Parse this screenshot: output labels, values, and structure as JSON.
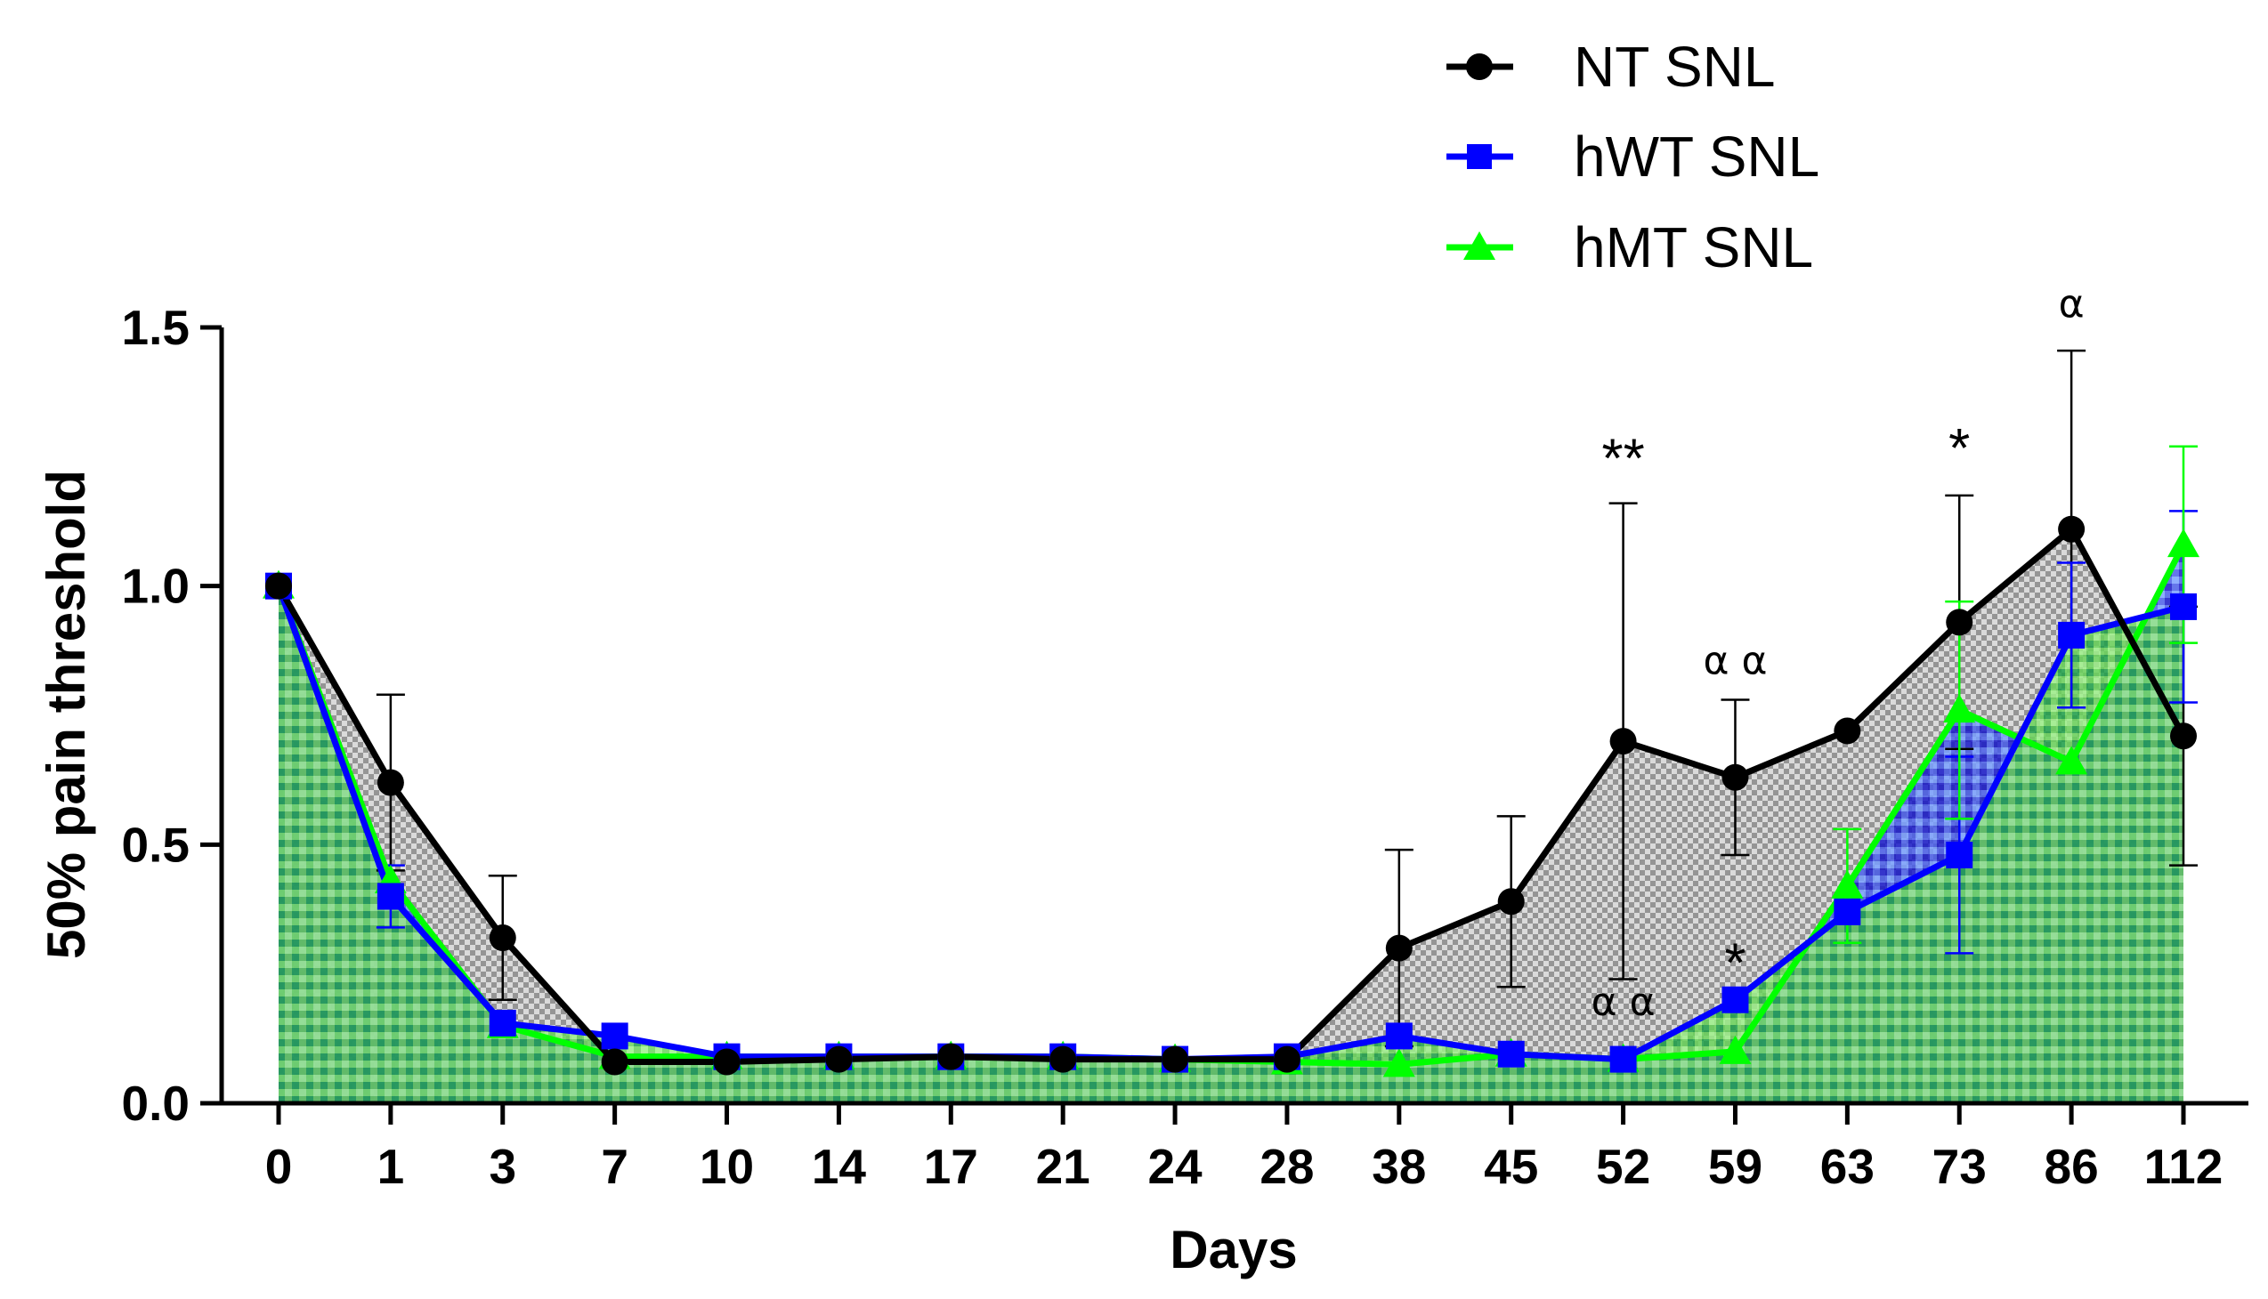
{
  "chart_data": {
    "type": "line",
    "title": "",
    "xlabel": "Days",
    "ylabel": "50% pain threshold",
    "categories": [
      "0",
      "1",
      "3",
      "7",
      "10",
      "14",
      "17",
      "21",
      "24",
      "28",
      "38",
      "45",
      "52",
      "59",
      "63",
      "73",
      "86",
      "112"
    ],
    "ylim": [
      0,
      1.5
    ],
    "yticks": [
      "0.0",
      "0.5",
      "1.0",
      "1.5"
    ],
    "ytick_values": [
      0,
      0.5,
      1.0,
      1.5
    ],
    "legend_position": "top-right",
    "series": [
      {
        "name": "NT SNL",
        "color": "#000000",
        "marker": "circle",
        "values": [
          1.0,
          0.62,
          0.32,
          0.08,
          0.08,
          0.085,
          0.09,
          0.085,
          0.085,
          0.085,
          0.3,
          0.39,
          0.7,
          0.63,
          0.72,
          0.93,
          1.11,
          0.71
        ],
        "error": [
          0,
          0.17,
          0.12,
          0,
          0,
          0,
          0,
          0,
          0,
          0,
          0.19,
          0.165,
          0.46,
          0.15,
          0,
          0.245,
          0.345,
          0.25
        ]
      },
      {
        "name": "hWT SNL",
        "color": "#0000ff",
        "marker": "square",
        "values": [
          1.0,
          0.4,
          0.155,
          0.13,
          0.09,
          0.09,
          0.09,
          0.09,
          0.085,
          0.09,
          0.13,
          0.095,
          0.085,
          0.2,
          0.37,
          0.48,
          0.905,
          0.96
        ],
        "error": [
          0,
          0.06,
          0,
          0,
          0,
          0,
          0,
          0,
          0,
          0,
          0,
          0,
          0,
          0,
          0,
          0.19,
          0.14,
          0.185
        ]
      },
      {
        "name": "hMT SNL",
        "color": "#00ff00",
        "marker": "triangle",
        "values": [
          1.0,
          0.43,
          0.15,
          0.09,
          0.09,
          0.09,
          0.09,
          0.09,
          0.085,
          0.08,
          0.075,
          0.095,
          0.085,
          0.1,
          0.42,
          0.76,
          0.66,
          1.08
        ],
        "error": [
          0,
          0,
          0,
          0,
          0,
          0,
          0,
          0,
          0,
          0,
          0,
          0,
          0,
          0,
          0.11,
          0.21,
          0,
          0.19
        ]
      }
    ],
    "annotations": [
      {
        "text": "**",
        "category": "52",
        "value": 1.21,
        "kind": "star"
      },
      {
        "text": "*",
        "category": "73",
        "value": 1.23,
        "kind": "star"
      },
      {
        "text": "*",
        "category": "59",
        "value": 0.235,
        "kind": "star"
      },
      {
        "text": "α α",
        "category": "59",
        "value": 0.83,
        "kind": "alpha"
      },
      {
        "text": "α α",
        "category": "52",
        "value": 0.17,
        "kind": "alpha"
      },
      {
        "text": "α",
        "category": "86",
        "value": 1.52,
        "kind": "alpha"
      }
    ]
  }
}
